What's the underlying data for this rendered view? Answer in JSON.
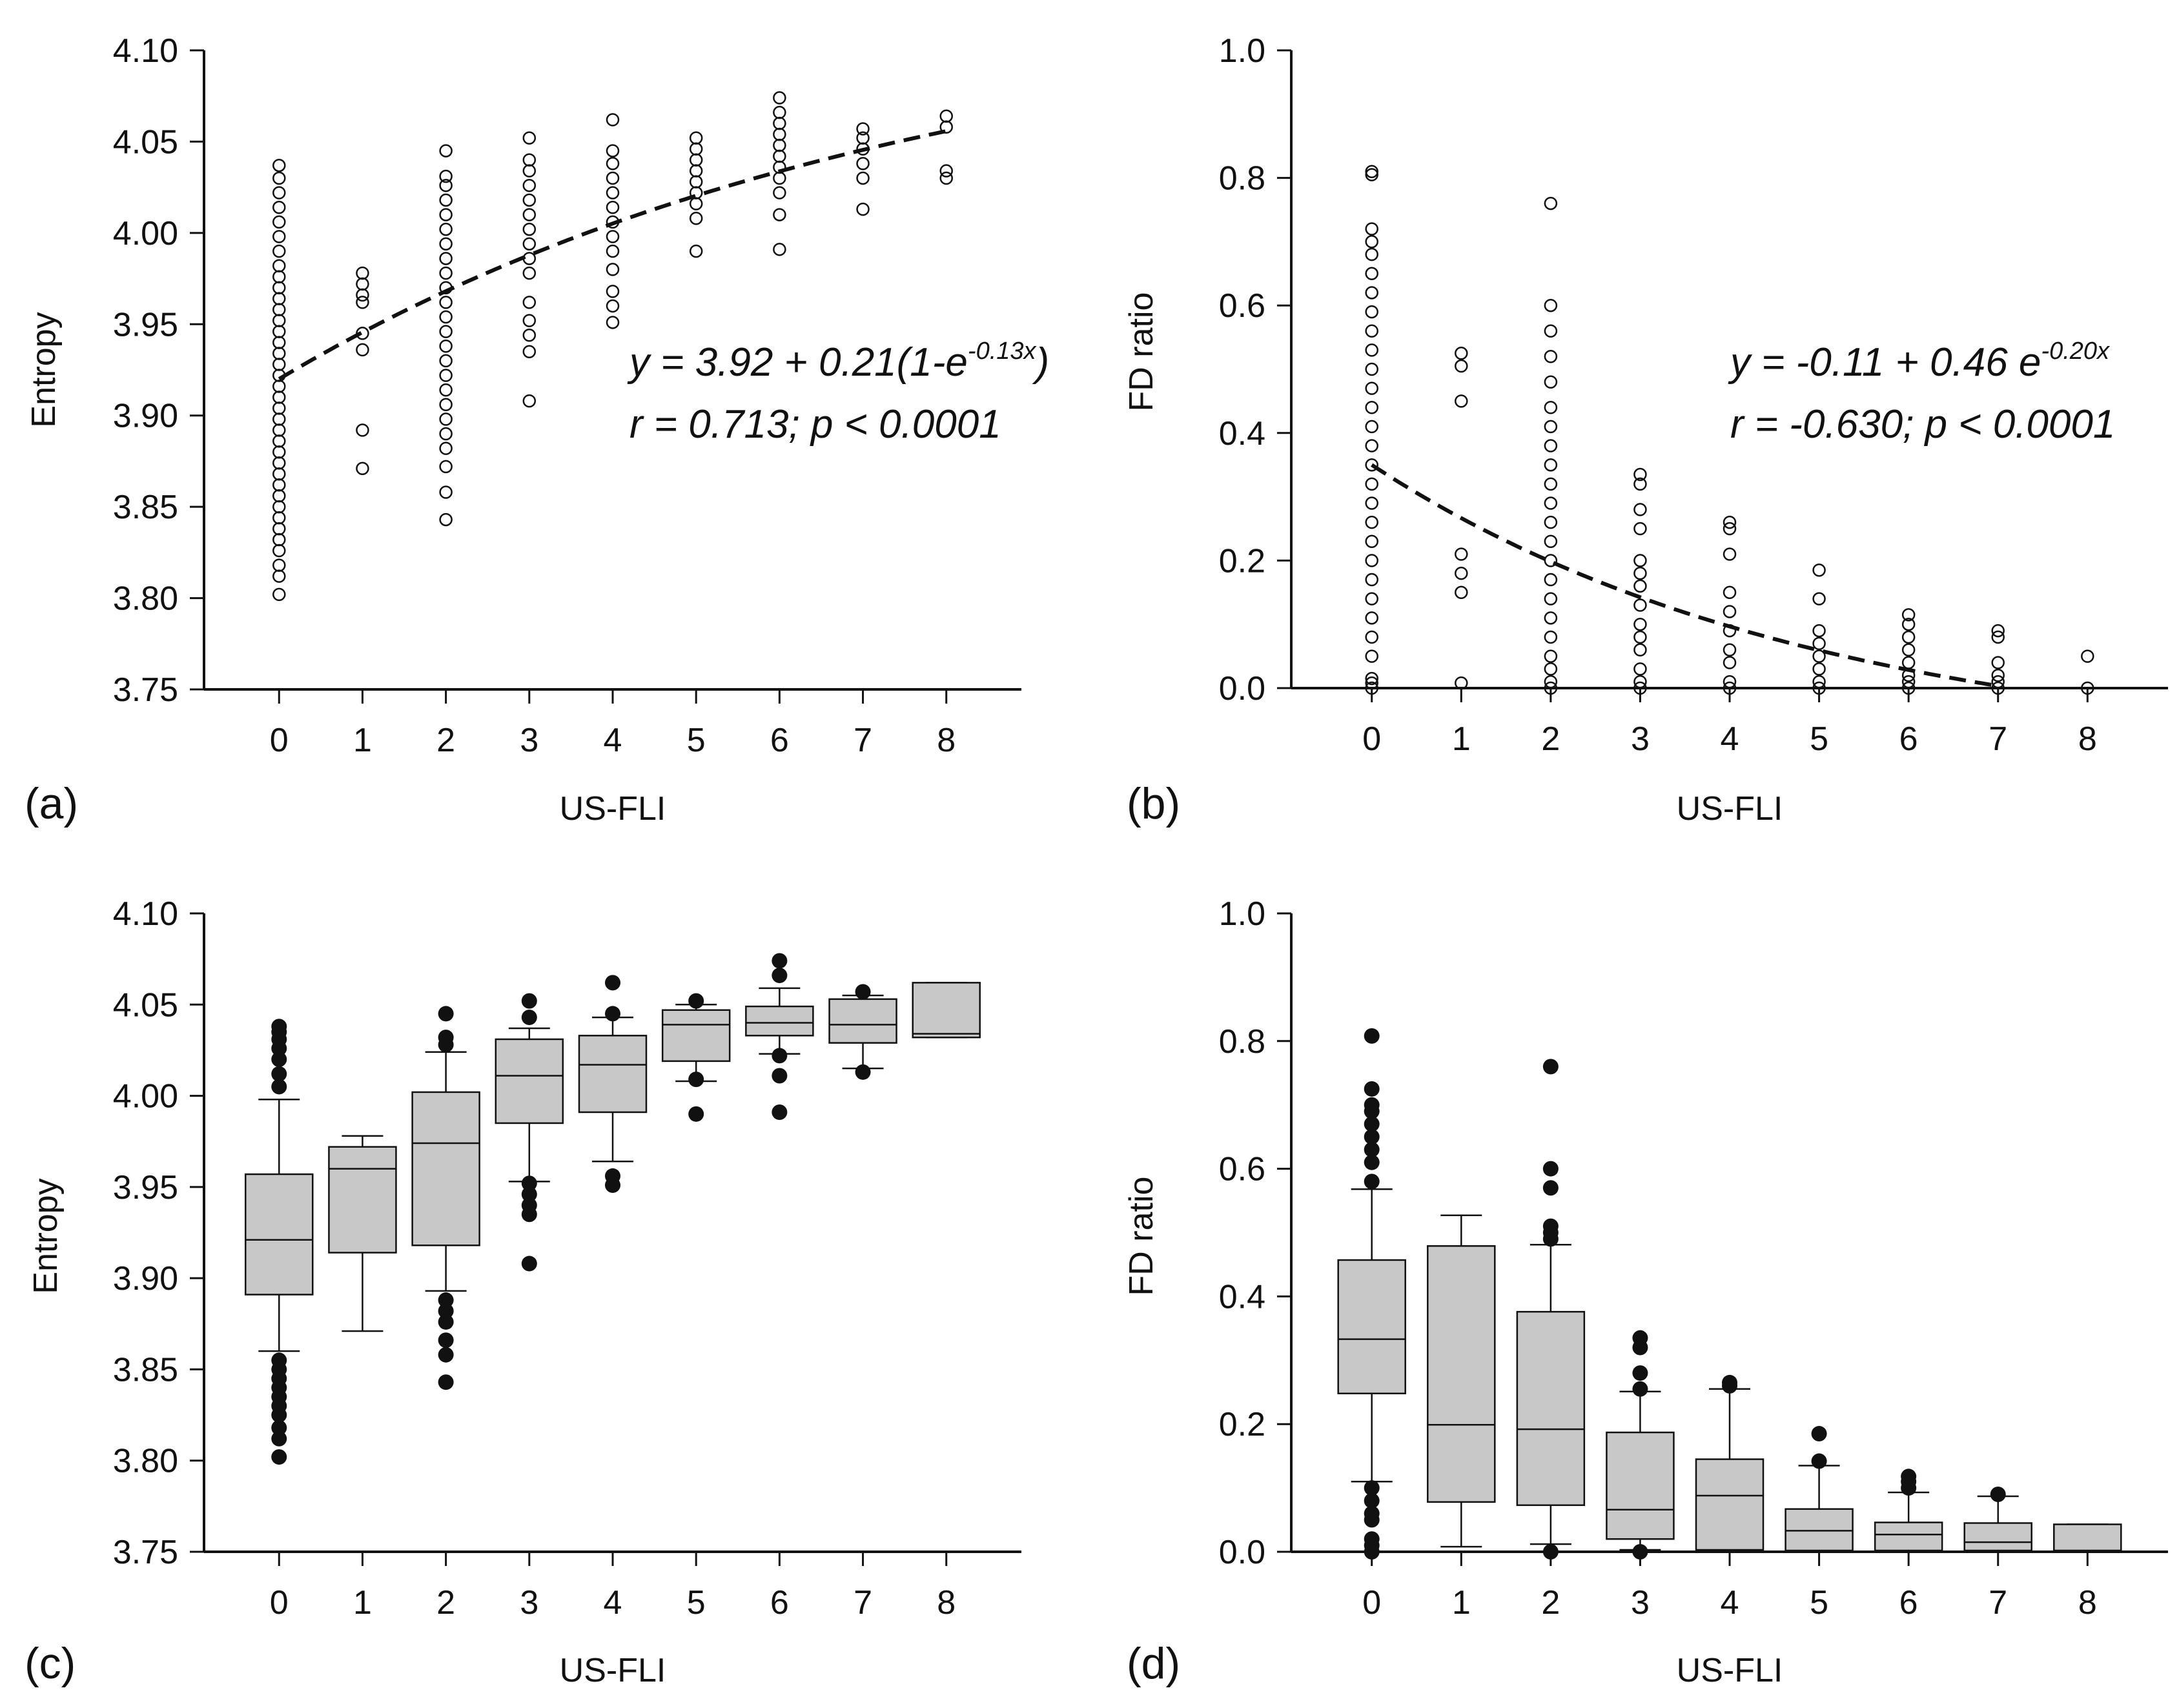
{
  "chart_data": [
    {
      "panel": "(a)",
      "type": "scatter",
      "xlabel": "US-FLI",
      "ylabel": "Entropy",
      "xlim": [
        -0.9,
        8.9
      ],
      "ylim": [
        3.75,
        4.1
      ],
      "xticks": [
        "0",
        "1",
        "2",
        "3",
        "4",
        "5",
        "6",
        "7",
        "8"
      ],
      "yticks": [
        "3.75",
        "3.80",
        "3.85",
        "3.90",
        "3.95",
        "4.00",
        "4.05",
        "4.10"
      ],
      "equation": {
        "prefix": "y = 3.92 + 0.21(1-e",
        "exponent": "-0.13x",
        "suffix": ")"
      },
      "stats": "r = 0.713; p < 0.0001",
      "fit": {
        "form": "rise_to_max",
        "a": 3.92,
        "b": 0.21,
        "k": 0.13,
        "x_range": [
          0,
          8
        ]
      },
      "points": [
        [
          0,
          3.802
        ],
        [
          0,
          3.812
        ],
        [
          0,
          3.818
        ],
        [
          0,
          3.826
        ],
        [
          0,
          3.832
        ],
        [
          0,
          3.838
        ],
        [
          0,
          3.844
        ],
        [
          0,
          3.85
        ],
        [
          0,
          3.856
        ],
        [
          0,
          3.862
        ],
        [
          0,
          3.868
        ],
        [
          0,
          3.874
        ],
        [
          0,
          3.88
        ],
        [
          0,
          3.886
        ],
        [
          0,
          3.892
        ],
        [
          0,
          3.898
        ],
        [
          0,
          3.904
        ],
        [
          0,
          3.91
        ],
        [
          0,
          3.916
        ],
        [
          0,
          3.922
        ],
        [
          0,
          3.928
        ],
        [
          0,
          3.934
        ],
        [
          0,
          3.94
        ],
        [
          0,
          3.946
        ],
        [
          0,
          3.952
        ],
        [
          0,
          3.958
        ],
        [
          0,
          3.964
        ],
        [
          0,
          3.97
        ],
        [
          0,
          3.976
        ],
        [
          0,
          3.982
        ],
        [
          0,
          3.99
        ],
        [
          0,
          3.998
        ],
        [
          0,
          4.006
        ],
        [
          0,
          4.014
        ],
        [
          0,
          4.022
        ],
        [
          0,
          4.03
        ],
        [
          0,
          4.037
        ],
        [
          1,
          3.871
        ],
        [
          1,
          3.892
        ],
        [
          1,
          3.936
        ],
        [
          1,
          3.945
        ],
        [
          1,
          3.962
        ],
        [
          1,
          3.966
        ],
        [
          1,
          3.972
        ],
        [
          1,
          3.978
        ],
        [
          2,
          3.843
        ],
        [
          2,
          3.858
        ],
        [
          2,
          3.872
        ],
        [
          2,
          3.882
        ],
        [
          2,
          3.89
        ],
        [
          2,
          3.898
        ],
        [
          2,
          3.906
        ],
        [
          2,
          3.914
        ],
        [
          2,
          3.922
        ],
        [
          2,
          3.93
        ],
        [
          2,
          3.938
        ],
        [
          2,
          3.946
        ],
        [
          2,
          3.954
        ],
        [
          2,
          3.962
        ],
        [
          2,
          3.97
        ],
        [
          2,
          3.978
        ],
        [
          2,
          3.986
        ],
        [
          2,
          3.994
        ],
        [
          2,
          4.002
        ],
        [
          2,
          4.01
        ],
        [
          2,
          4.018
        ],
        [
          2,
          4.026
        ],
        [
          2,
          4.031
        ],
        [
          2,
          4.045
        ],
        [
          3,
          3.908
        ],
        [
          3,
          3.935
        ],
        [
          3,
          3.944
        ],
        [
          3,
          3.952
        ],
        [
          3,
          3.962
        ],
        [
          3,
          3.978
        ],
        [
          3,
          3.986
        ],
        [
          3,
          3.994
        ],
        [
          3,
          4.002
        ],
        [
          3,
          4.01
        ],
        [
          3,
          4.018
        ],
        [
          3,
          4.026
        ],
        [
          3,
          4.034
        ],
        [
          3,
          4.04
        ],
        [
          3,
          4.052
        ],
        [
          4,
          3.951
        ],
        [
          4,
          3.96
        ],
        [
          4,
          3.968
        ],
        [
          4,
          3.98
        ],
        [
          4,
          3.99
        ],
        [
          4,
          3.998
        ],
        [
          4,
          4.006
        ],
        [
          4,
          4.014
        ],
        [
          4,
          4.022
        ],
        [
          4,
          4.03
        ],
        [
          4,
          4.038
        ],
        [
          4,
          4.045
        ],
        [
          4,
          4.062
        ],
        [
          5,
          3.99
        ],
        [
          5,
          4.008
        ],
        [
          5,
          4.016
        ],
        [
          5,
          4.022
        ],
        [
          5,
          4.028
        ],
        [
          5,
          4.034
        ],
        [
          5,
          4.04
        ],
        [
          5,
          4.046
        ],
        [
          5,
          4.052
        ],
        [
          6,
          3.991
        ],
        [
          6,
          4.01
        ],
        [
          6,
          4.022
        ],
        [
          6,
          4.03
        ],
        [
          6,
          4.036
        ],
        [
          6,
          4.042
        ],
        [
          6,
          4.048
        ],
        [
          6,
          4.054
        ],
        [
          6,
          4.06
        ],
        [
          6,
          4.066
        ],
        [
          6,
          4.074
        ],
        [
          7,
          4.013
        ],
        [
          7,
          4.03
        ],
        [
          7,
          4.038
        ],
        [
          7,
          4.046
        ],
        [
          7,
          4.052
        ],
        [
          7,
          4.057
        ],
        [
          8,
          4.03
        ],
        [
          8,
          4.034
        ],
        [
          8,
          4.058
        ],
        [
          8,
          4.064
        ]
      ]
    },
    {
      "panel": "(b)",
      "type": "scatter",
      "xlabel": "US-FLI",
      "ylabel": "FD ratio",
      "xlim": [
        -0.9,
        8.9
      ],
      "ylim": [
        0.0,
        1.0
      ],
      "xticks": [
        "0",
        "1",
        "2",
        "3",
        "4",
        "5",
        "6",
        "7",
        "8"
      ],
      "yticks": [
        "0.0",
        "0.2",
        "0.4",
        "0.6",
        "0.8",
        "1.0"
      ],
      "equation": {
        "prefix": "y = -0.11 + 0.46 e",
        "exponent": "-0.20x",
        "suffix": ""
      },
      "stats": "r = -0.630; p < 0.0001",
      "fit": {
        "form": "exp_decay",
        "a": -0.11,
        "b": 0.46,
        "k": 0.2,
        "x_range": [
          0,
          7
        ]
      },
      "points": [
        [
          0,
          0.0
        ],
        [
          0,
          0.008
        ],
        [
          0,
          0.015
        ],
        [
          0,
          0.05
        ],
        [
          0,
          0.08
        ],
        [
          0,
          0.11
        ],
        [
          0,
          0.14
        ],
        [
          0,
          0.17
        ],
        [
          0,
          0.2
        ],
        [
          0,
          0.23
        ],
        [
          0,
          0.26
        ],
        [
          0,
          0.29
        ],
        [
          0,
          0.32
        ],
        [
          0,
          0.35
        ],
        [
          0,
          0.38
        ],
        [
          0,
          0.41
        ],
        [
          0,
          0.44
        ],
        [
          0,
          0.47
        ],
        [
          0,
          0.5
        ],
        [
          0,
          0.53
        ],
        [
          0,
          0.56
        ],
        [
          0,
          0.59
        ],
        [
          0,
          0.62
        ],
        [
          0,
          0.65
        ],
        [
          0,
          0.68
        ],
        [
          0,
          0.7
        ],
        [
          0,
          0.72
        ],
        [
          0,
          0.805
        ],
        [
          0,
          0.81
        ],
        [
          1,
          0.008
        ],
        [
          1,
          0.15
        ],
        [
          1,
          0.18
        ],
        [
          1,
          0.21
        ],
        [
          1,
          0.45
        ],
        [
          1,
          0.505
        ],
        [
          1,
          0.525
        ],
        [
          2,
          0.0
        ],
        [
          2,
          0.01
        ],
        [
          2,
          0.03
        ],
        [
          2,
          0.05
        ],
        [
          2,
          0.08
        ],
        [
          2,
          0.11
        ],
        [
          2,
          0.14
        ],
        [
          2,
          0.17
        ],
        [
          2,
          0.2
        ],
        [
          2,
          0.23
        ],
        [
          2,
          0.26
        ],
        [
          2,
          0.29
        ],
        [
          2,
          0.32
        ],
        [
          2,
          0.35
        ],
        [
          2,
          0.38
        ],
        [
          2,
          0.41
        ],
        [
          2,
          0.44
        ],
        [
          2,
          0.48
        ],
        [
          2,
          0.52
        ],
        [
          2,
          0.56
        ],
        [
          2,
          0.6
        ],
        [
          2,
          0.76
        ],
        [
          3,
          0.0
        ],
        [
          3,
          0.01
        ],
        [
          3,
          0.03
        ],
        [
          3,
          0.06
        ],
        [
          3,
          0.08
        ],
        [
          3,
          0.1
        ],
        [
          3,
          0.13
        ],
        [
          3,
          0.16
        ],
        [
          3,
          0.18
        ],
        [
          3,
          0.2
        ],
        [
          3,
          0.25
        ],
        [
          3,
          0.28
        ],
        [
          3,
          0.32
        ],
        [
          3,
          0.335
        ],
        [
          4,
          0.0
        ],
        [
          4,
          0.01
        ],
        [
          4,
          0.04
        ],
        [
          4,
          0.06
        ],
        [
          4,
          0.09
        ],
        [
          4,
          0.12
        ],
        [
          4,
          0.15
        ],
        [
          4,
          0.21
        ],
        [
          4,
          0.25
        ],
        [
          4,
          0.26
        ],
        [
          5,
          0.0
        ],
        [
          5,
          0.01
        ],
        [
          5,
          0.03
        ],
        [
          5,
          0.05
        ],
        [
          5,
          0.07
        ],
        [
          5,
          0.09
        ],
        [
          5,
          0.14
        ],
        [
          5,
          0.185
        ],
        [
          6,
          0.0
        ],
        [
          6,
          0.01
        ],
        [
          6,
          0.02
        ],
        [
          6,
          0.04
        ],
        [
          6,
          0.06
        ],
        [
          6,
          0.08
        ],
        [
          6,
          0.1
        ],
        [
          6,
          0.115
        ],
        [
          7,
          0.0
        ],
        [
          7,
          0.01
        ],
        [
          7,
          0.02
        ],
        [
          7,
          0.04
        ],
        [
          7,
          0.08
        ],
        [
          7,
          0.09
        ],
        [
          8,
          0.0
        ],
        [
          8,
          0.05
        ]
      ]
    },
    {
      "panel": "(c)",
      "type": "box",
      "xlabel": "US-FLI",
      "ylabel": "Entropy",
      "xlim": [
        -0.9,
        8.9
      ],
      "ylim": [
        3.75,
        4.1
      ],
      "xticks": [
        "0",
        "1",
        "2",
        "3",
        "4",
        "5",
        "6",
        "7",
        "8"
      ],
      "yticks": [
        "3.75",
        "3.80",
        "3.85",
        "3.90",
        "3.95",
        "4.00",
        "4.05",
        "4.10"
      ],
      "boxes": [
        {
          "x": 0,
          "whisker_low": 3.86,
          "q1": 3.891,
          "median": 3.921,
          "q3": 3.957,
          "whisker_high": 3.998,
          "outliers": [
            3.802,
            3.812,
            3.818,
            3.825,
            3.83,
            3.835,
            3.84,
            3.845,
            3.85,
            3.855,
            4.005,
            4.012,
            4.02,
            4.026,
            4.031,
            4.035,
            4.038
          ]
        },
        {
          "x": 1,
          "whisker_low": 3.871,
          "q1": 3.914,
          "median": 3.96,
          "q3": 3.972,
          "whisker_high": 3.978,
          "outliers": []
        },
        {
          "x": 2,
          "whisker_low": 3.893,
          "q1": 3.918,
          "median": 3.974,
          "q3": 4.002,
          "whisker_high": 4.024,
          "outliers": [
            3.843,
            3.858,
            3.866,
            3.876,
            3.882,
            3.888,
            4.028,
            4.032,
            4.045
          ]
        },
        {
          "x": 3,
          "whisker_low": 3.953,
          "q1": 3.985,
          "median": 4.011,
          "q3": 4.031,
          "whisker_high": 4.037,
          "outliers": [
            3.908,
            3.935,
            3.94,
            3.946,
            3.952,
            4.043,
            4.052
          ]
        },
        {
          "x": 4,
          "whisker_low": 3.964,
          "q1": 3.991,
          "median": 4.017,
          "q3": 4.033,
          "whisker_high": 4.043,
          "outliers": [
            3.951,
            3.956,
            4.045,
            4.062
          ]
        },
        {
          "x": 5,
          "whisker_low": 4.008,
          "q1": 4.019,
          "median": 4.039,
          "q3": 4.047,
          "whisker_high": 4.05,
          "outliers": [
            3.99,
            4.009,
            4.052
          ]
        },
        {
          "x": 6,
          "whisker_low": 4.023,
          "q1": 4.033,
          "median": 4.04,
          "q3": 4.049,
          "whisker_high": 4.059,
          "outliers": [
            3.991,
            4.011,
            4.022,
            4.066,
            4.074
          ]
        },
        {
          "x": 7,
          "whisker_low": 4.015,
          "q1": 4.029,
          "median": 4.039,
          "q3": 4.053,
          "whisker_high": 4.055,
          "outliers": [
            4.013,
            4.057
          ]
        },
        {
          "x": 8,
          "whisker_low": 4.032,
          "q1": 4.032,
          "median": 4.034,
          "q3": 4.062,
          "whisker_high": 4.062,
          "outliers": []
        }
      ]
    },
    {
      "panel": "(d)",
      "type": "box",
      "xlabel": "US-FLI",
      "ylabel": "FD ratio",
      "xlim": [
        -0.9,
        8.9
      ],
      "ylim": [
        0.0,
        1.0
      ],
      "xticks": [
        "0",
        "1",
        "2",
        "3",
        "4",
        "5",
        "6",
        "7",
        "8"
      ],
      "yticks": [
        "0.0",
        "0.2",
        "0.4",
        "0.6",
        "0.8",
        "1.0"
      ],
      "boxes": [
        {
          "x": 0,
          "whisker_low": 0.11,
          "q1": 0.248,
          "median": 0.333,
          "q3": 0.457,
          "whisker_high": 0.568,
          "outliers": [
            0.0,
            0.01,
            0.02,
            0.05,
            0.06,
            0.08,
            0.1,
            0.58,
            0.61,
            0.63,
            0.65,
            0.67,
            0.69,
            0.7,
            0.725,
            0.808
          ]
        },
        {
          "x": 1,
          "whisker_low": 0.008,
          "q1": 0.078,
          "median": 0.199,
          "q3": 0.479,
          "whisker_high": 0.527,
          "outliers": []
        },
        {
          "x": 2,
          "whisker_low": 0.012,
          "q1": 0.073,
          "median": 0.192,
          "q3": 0.376,
          "whisker_high": 0.481,
          "outliers": [
            0.0,
            0.49,
            0.5,
            0.51,
            0.57,
            0.6,
            0.76
          ]
        },
        {
          "x": 3,
          "whisker_low": 0.003,
          "q1": 0.02,
          "median": 0.066,
          "q3": 0.187,
          "whisker_high": 0.251,
          "outliers": [
            0.0,
            0.255,
            0.28,
            0.32,
            0.335
          ]
        },
        {
          "x": 4,
          "whisker_low": 0.001,
          "q1": 0.003,
          "median": 0.088,
          "q3": 0.145,
          "whisker_high": 0.255,
          "outliers": [
            0.26,
            0.265
          ]
        },
        {
          "x": 5,
          "whisker_low": 0.001,
          "q1": 0.002,
          "median": 0.033,
          "q3": 0.067,
          "whisker_high": 0.135,
          "outliers": [
            0.142,
            0.185
          ]
        },
        {
          "x": 6,
          "whisker_low": 0.001,
          "q1": 0.002,
          "median": 0.027,
          "q3": 0.046,
          "whisker_high": 0.093,
          "outliers": [
            0.1,
            0.11,
            0.118
          ]
        },
        {
          "x": 7,
          "whisker_low": 0.001,
          "q1": 0.002,
          "median": 0.015,
          "q3": 0.045,
          "whisker_high": 0.087,
          "outliers": [
            0.09
          ]
        },
        {
          "x": 8,
          "whisker_low": 0.0,
          "q1": 0.001,
          "median": 0.002,
          "q3": 0.043,
          "whisker_high": 0.043,
          "outliers": []
        }
      ]
    }
  ],
  "style": {
    "box_fill": "#c8c8c8",
    "ink": "#111111",
    "background": "#ffffff"
  }
}
